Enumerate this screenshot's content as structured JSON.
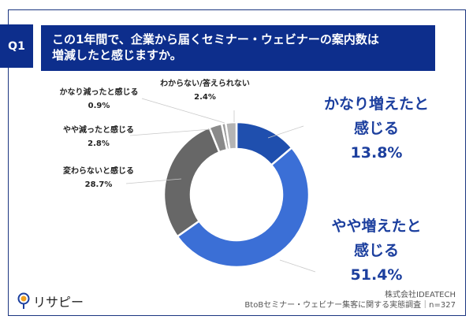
{
  "header": {
    "q": "Q1",
    "title_line1": "この1年間で、企業から届くセミナー・ウェビナーの案内数は",
    "title_line2": "増減したと感じますか。"
  },
  "chart_data": {
    "type": "pie",
    "donut": true,
    "title": "この1年間で、企業から届くセミナー・ウェビナーの案内数は増減したと感じますか。",
    "categories": [
      "かなり増えたと感じる",
      "やや増えたと感じる",
      "変わらないと感じる",
      "やや減ったと感じる",
      "かなり減ったと感じる",
      "わからない/答えられない"
    ],
    "values": [
      13.8,
      51.4,
      28.7,
      2.8,
      0.9,
      2.4
    ],
    "colors": [
      "#1f4fae",
      "#3b6fd6",
      "#676767",
      "#8a8a8a",
      "#9e9e9e",
      "#b4b4b4"
    ],
    "labels": [
      {
        "l1": "かなり増えたと",
        "l2": "感じる",
        "v": "13.8%"
      },
      {
        "l1": "やや増えたと",
        "l2": "感じる",
        "v": "51.4%"
      },
      {
        "l1": "変わらないと感じる",
        "v": "28.7%"
      },
      {
        "l1": "やや減ったと感じる",
        "v": "2.8%"
      },
      {
        "l1": "かなり減ったと感じる",
        "v": "0.9%"
      },
      {
        "l1": "わからない/答えられない",
        "v": "2.4%"
      }
    ]
  },
  "footer": {
    "company": "株式会社IDEATECH",
    "survey": "BtoBセミナー・ウェビナー集客に関する実態調査｜n=327",
    "logo": "リサピー"
  }
}
